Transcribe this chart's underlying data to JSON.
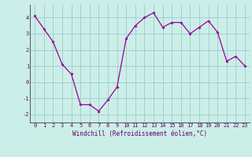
{
  "x": [
    0,
    1,
    2,
    3,
    4,
    5,
    6,
    7,
    8,
    9,
    10,
    11,
    12,
    13,
    14,
    15,
    16,
    17,
    18,
    19,
    20,
    21,
    22,
    23
  ],
  "y": [
    4.1,
    3.3,
    2.5,
    1.1,
    0.5,
    -1.4,
    -1.4,
    -1.8,
    -1.1,
    -0.3,
    2.7,
    3.5,
    4.0,
    4.3,
    3.4,
    3.7,
    3.7,
    3.0,
    3.4,
    3.8,
    3.1,
    1.3,
    1.6,
    1.0
  ],
  "line_color": "#990099",
  "marker": "D",
  "marker_size": 2,
  "bg_color": "#cceee8",
  "grid_color": "#99cccc",
  "xlabel": "Windchill (Refroidissement éolien,°C)",
  "xlabel_color": "#660066",
  "tick_color": "#660066",
  "ylim": [
    -2.5,
    4.8
  ],
  "xlim": [
    -0.5,
    23.5
  ],
  "yticks": [
    -2,
    -1,
    0,
    1,
    2,
    3,
    4
  ],
  "xticks": [
    0,
    1,
    2,
    3,
    4,
    5,
    6,
    7,
    8,
    9,
    10,
    11,
    12,
    13,
    14,
    15,
    16,
    17,
    18,
    19,
    20,
    21,
    22,
    23
  ],
  "tick_fontsize": 5,
  "xlabel_fontsize": 5.5,
  "ylabel_fontsize": 5.5,
  "linewidth": 0.9
}
